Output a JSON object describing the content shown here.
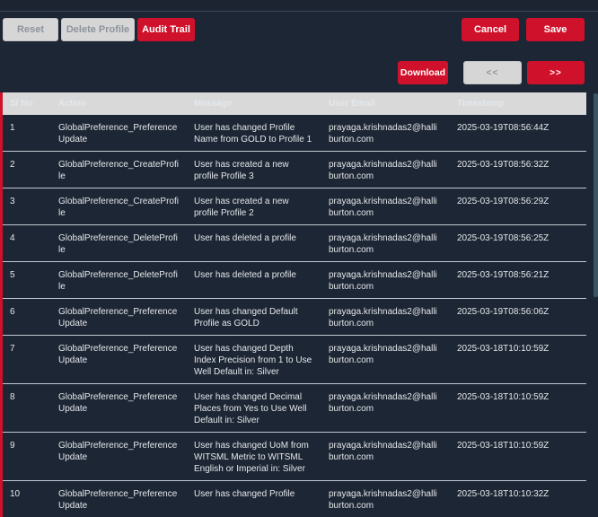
{
  "colors": {
    "accent_red": "#d0112b",
    "background": "#1d2634",
    "header_gray": "#d9d9d9",
    "disabled_gray": "#d6d6d6",
    "row_text": "#e4e8ec",
    "scrollbar_thumb": "#3a5663"
  },
  "toolbar": {
    "reset_label": "Reset",
    "delete_profile_label": "Delete Profile",
    "audit_trail_label": "Audit Trail",
    "cancel_label": "Cancel",
    "save_label": "Save"
  },
  "pagination": {
    "download_label": "Download",
    "prev_label": "<<",
    "next_label": ">>"
  },
  "table": {
    "columns": [
      "Sl No",
      "Action",
      "Message",
      "User Email",
      "Timestamp"
    ],
    "rows": [
      {
        "sl_no": "1",
        "action": "GlobalPreference_PreferenceUpdate",
        "message": "User has changed Profile Name from GOLD to Profile 1",
        "user_email": "prayaga.krishnadas2@halliburton.com",
        "timestamp": "2025-03-19T08:56:44Z"
      },
      {
        "sl_no": "2",
        "action": "GlobalPreference_CreateProfile",
        "message": "User has created a new profile Profile 3",
        "user_email": "prayaga.krishnadas2@halliburton.com",
        "timestamp": "2025-03-19T08:56:32Z"
      },
      {
        "sl_no": "3",
        "action": "GlobalPreference_CreateProfile",
        "message": "User has created a new profile Profile 2",
        "user_email": "prayaga.krishnadas2@halliburton.com",
        "timestamp": "2025-03-19T08:56:29Z"
      },
      {
        "sl_no": "4",
        "action": "GlobalPreference_DeleteProfile",
        "message": "User has deleted a profile",
        "user_email": "prayaga.krishnadas2@halliburton.com",
        "timestamp": "2025-03-19T08:56:25Z"
      },
      {
        "sl_no": "5",
        "action": "GlobalPreference_DeleteProfile",
        "message": "User has deleted a profile",
        "user_email": "prayaga.krishnadas2@halliburton.com",
        "timestamp": "2025-03-19T08:56:21Z"
      },
      {
        "sl_no": "6",
        "action": "GlobalPreference_PreferenceUpdate",
        "message": "User has changed Default Profile as GOLD",
        "user_email": "prayaga.krishnadas2@halliburton.com",
        "timestamp": "2025-03-19T08:56:06Z"
      },
      {
        "sl_no": "7",
        "action": "GlobalPreference_PreferenceUpdate",
        "message": "User has changed Depth Index Precision from 1 to Use Well Default in: Silver",
        "user_email": "prayaga.krishnadas2@halliburton.com",
        "timestamp": "2025-03-18T10:10:59Z"
      },
      {
        "sl_no": "8",
        "action": "GlobalPreference_PreferenceUpdate",
        "message": "User has changed Decimal Places from Yes to Use Well Default in: Silver",
        "user_email": "prayaga.krishnadas2@halliburton.com",
        "timestamp": "2025-03-18T10:10:59Z"
      },
      {
        "sl_no": "9",
        "action": "GlobalPreference_PreferenceUpdate",
        "message": "User has changed UoM from WITSML Metric to WITSML English or Imperial in: Silver",
        "user_email": "prayaga.krishnadas2@halliburton.com",
        "timestamp": "2025-03-18T10:10:59Z"
      },
      {
        "sl_no": "10",
        "action": "GlobalPreference_PreferenceUpdate",
        "message": "User has changed Profile",
        "user_email": "prayaga.krishnadas2@halliburton.com",
        "timestamp": "2025-03-18T10:10:32Z"
      }
    ]
  }
}
